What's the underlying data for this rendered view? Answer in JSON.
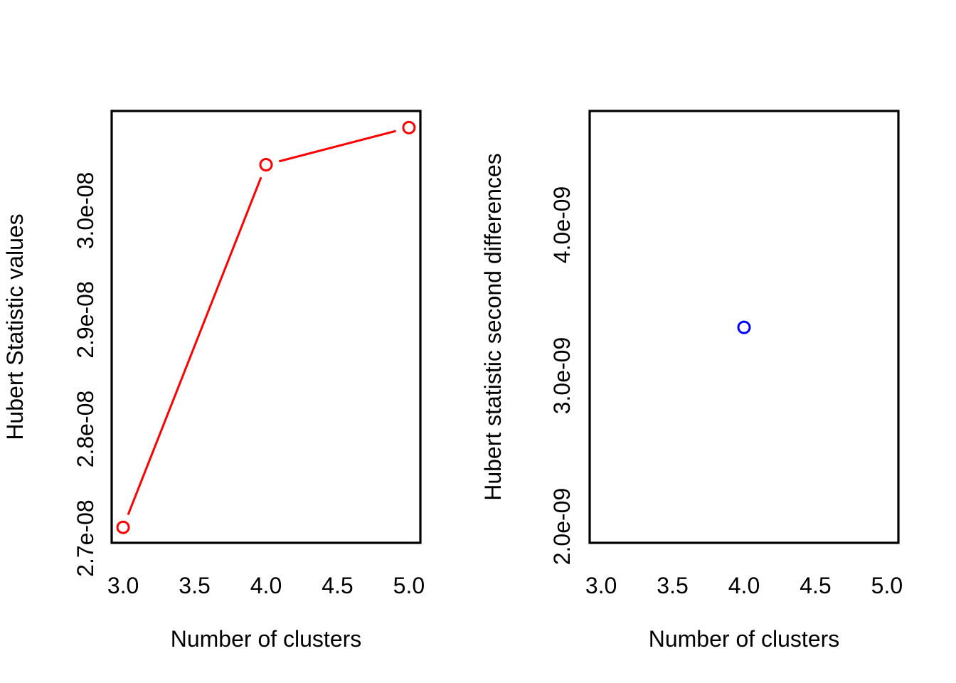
{
  "figure": {
    "background": "#FFFFFF",
    "panels": 2,
    "source_style": "R base graphics (NbClust Hubert index plots)"
  },
  "chart_data": [
    {
      "type": "line",
      "draw_style": "points-and-line-with-gaps",
      "marker": "open-circle",
      "color": "#FF0000",
      "title": "",
      "xlabel": "Number of clusters",
      "ylabel": "Hubert Statistic values",
      "x": [
        3,
        4,
        5
      ],
      "y": [
        2.71e-08,
        3.042e-08,
        3.076e-08
      ],
      "xlim": [
        2.92,
        5.08
      ],
      "ylim": [
        2.6958e-08,
        3.0912e-08
      ],
      "x_ticks": {
        "values": [
          3.0,
          3.5,
          4.0,
          4.5,
          5.0
        ],
        "labels": [
          "3.0",
          "3.5",
          "4.0",
          "4.5",
          "5.0"
        ]
      },
      "y_ticks": {
        "values": [
          2.7e-08,
          2.8e-08,
          2.9e-08,
          3e-08
        ],
        "labels": [
          "2.7e-08",
          "2.8e-08",
          "2.9e-08",
          "3.0e-08"
        ]
      },
      "grid": false,
      "legend": null
    },
    {
      "type": "scatter",
      "draw_style": "points",
      "marker": "open-circle",
      "color": "#0000FF",
      "title": "",
      "xlabel": "Number of clusters",
      "ylabel": "Hubert statistic second differences",
      "x": [
        4
      ],
      "y": [
        3.32e-09
      ],
      "xlim": [
        2.92,
        5.08
      ],
      "ylim": [
        1.8915e-09,
        4.7547e-09
      ],
      "x_ticks": {
        "values": [
          3.0,
          3.5,
          4.0,
          4.5,
          5.0
        ],
        "labels": [
          "3.0",
          "3.5",
          "4.0",
          "4.5",
          "5.0"
        ]
      },
      "y_ticks": {
        "values": [
          2e-09,
          3e-09,
          4e-09
        ],
        "labels": [
          "2.0e-09",
          "3.0e-09",
          "4.0e-09"
        ]
      },
      "grid": false,
      "legend": null
    }
  ]
}
